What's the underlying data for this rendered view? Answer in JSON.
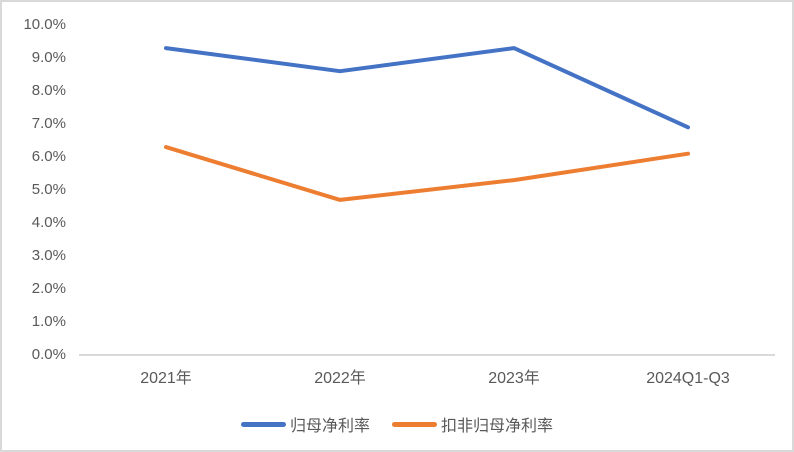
{
  "chart_data": {
    "type": "line",
    "categories": [
      "2021年",
      "2022年",
      "2023年",
      "2024Q1-Q3"
    ],
    "series": [
      {
        "name": "归母净利率",
        "color": "#4472C4",
        "values": [
          9.3,
          8.6,
          9.3,
          6.9
        ]
      },
      {
        "name": "扣非归母净利率",
        "color": "#ED7D31",
        "values": [
          6.3,
          4.7,
          5.3,
          6.1
        ]
      }
    ],
    "title": "",
    "xlabel": "",
    "ylabel": "",
    "ylim": [
      0,
      10
    ],
    "ytick_step": 1,
    "ytick_labels": [
      "0.0%",
      "1.0%",
      "2.0%",
      "3.0%",
      "4.0%",
      "5.0%",
      "6.0%",
      "7.0%",
      "8.0%",
      "9.0%",
      "10.0%"
    ],
    "grid": false,
    "legend_position": "bottom",
    "colors": {
      "axis_line": "#d9d9d9",
      "tick_text": "#595959",
      "frame_border": "#d9d9d9",
      "background": "#ffffff"
    }
  }
}
